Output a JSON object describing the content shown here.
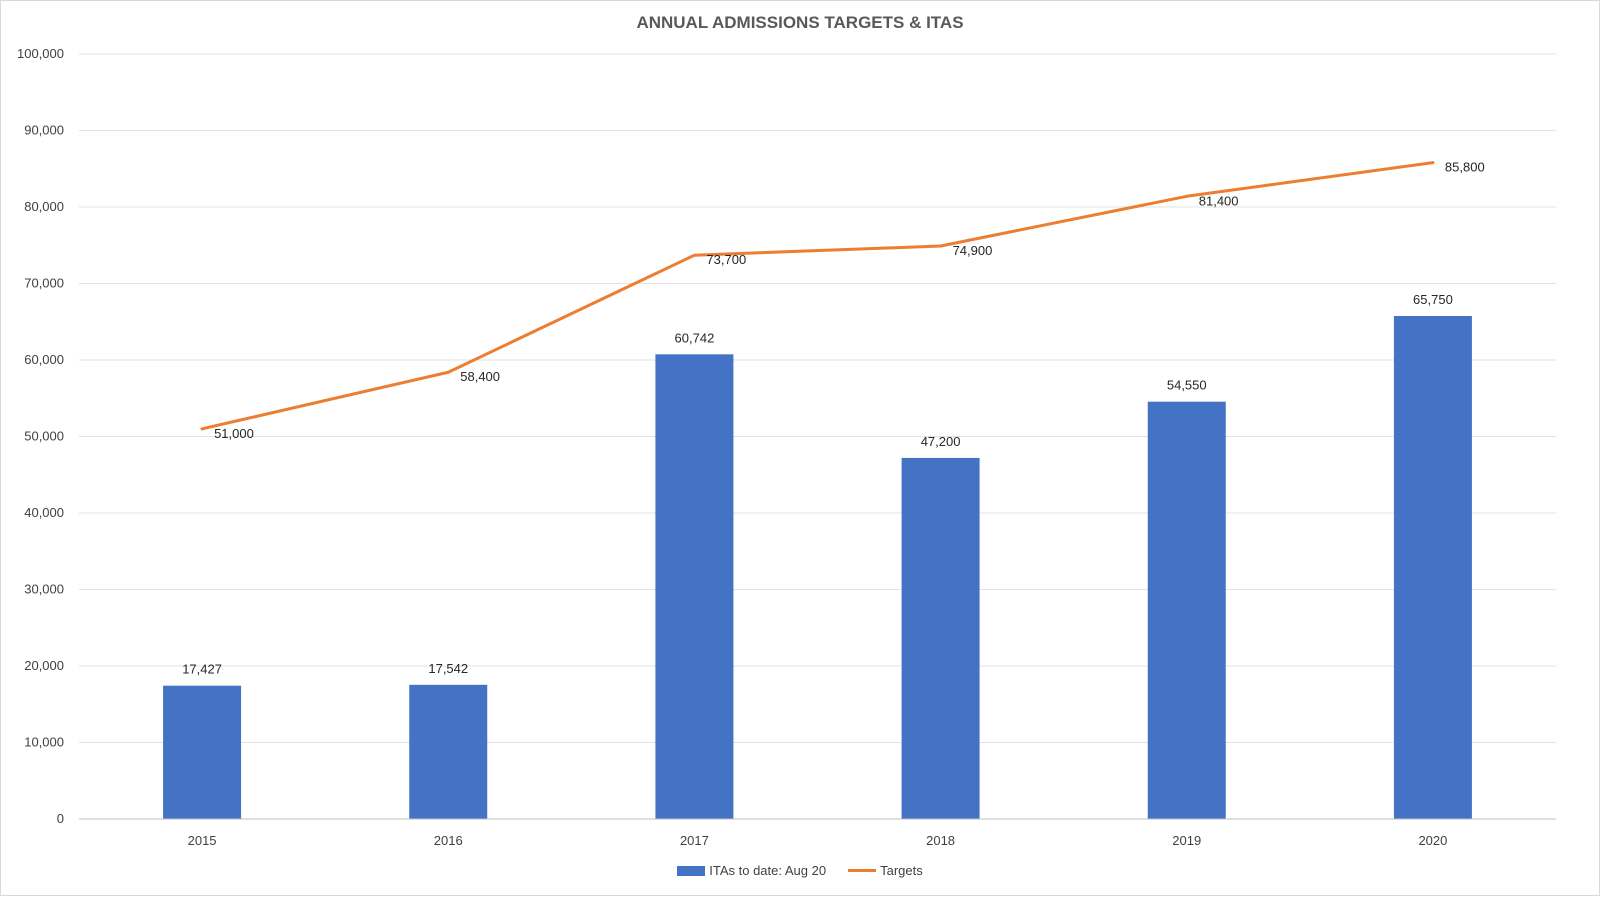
{
  "chart_data": {
    "type": "bar",
    "title": "ANNUAL ADMISSIONS TARGETS & ITAS",
    "categories": [
      "2015",
      "2016",
      "2017",
      "2018",
      "2019",
      "2020"
    ],
    "ylim": [
      0,
      100000
    ],
    "yticks": [
      0,
      10000,
      20000,
      30000,
      40000,
      50000,
      60000,
      70000,
      80000,
      90000,
      100000
    ],
    "ytick_labels": [
      "0",
      "10,000",
      "20,000",
      "30,000",
      "40,000",
      "50,000",
      "60,000",
      "70,000",
      "80,000",
      "90,000",
      "100,000"
    ],
    "grid": true,
    "legend_position": "bottom",
    "series": [
      {
        "name": "ITAs to date: Aug 20",
        "type": "bar",
        "color": "#4472C4",
        "values": [
          17427,
          17542,
          60742,
          47200,
          54550,
          65750
        ],
        "labels": [
          "17,427",
          "17,542",
          "60,742",
          "47,200",
          "54,550",
          "65,750"
        ]
      },
      {
        "name": "Targets",
        "type": "line",
        "color": "#ED7D31",
        "values": [
          51000,
          58400,
          73700,
          74900,
          81400,
          85800
        ],
        "labels": [
          "51,000",
          "58,400",
          "73,700",
          "74,900",
          "81,400",
          "85,800"
        ]
      }
    ]
  }
}
